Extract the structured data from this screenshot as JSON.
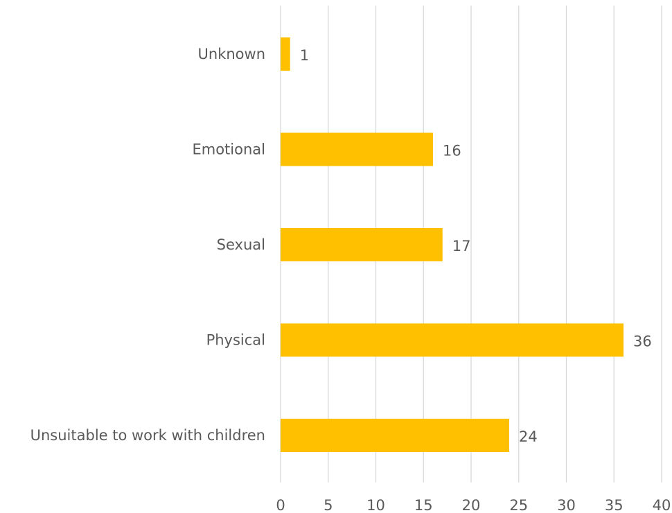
{
  "chart_data": {
    "type": "bar",
    "orientation": "horizontal",
    "categories": [
      "Unknown",
      "Emotional",
      "Sexual",
      "Physical",
      "Unsuitable to work with children"
    ],
    "values": [
      1,
      16,
      17,
      36,
      24
    ],
    "xlim": [
      0,
      40
    ],
    "xticks": [
      0,
      5,
      10,
      15,
      20,
      25,
      30,
      35,
      40
    ],
    "grid": true,
    "legend": "none",
    "data_labels": true,
    "bar_color": "#ffc000",
    "title": "",
    "xlabel": "",
    "ylabel": ""
  }
}
